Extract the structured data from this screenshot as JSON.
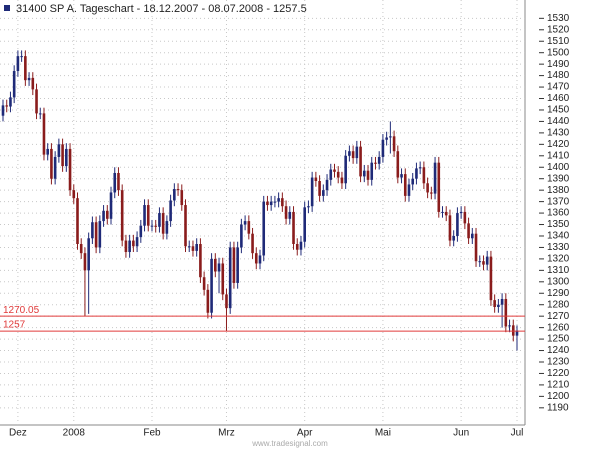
{
  "chart_data": {
    "type": "candlestick",
    "title": "31400  SP A. Tageschart - 18.12.2007 - 08.07.2008 - 1257.5",
    "watermark": "www.tradesignal.com",
    "categories": [
      null,
      null,
      null,
      null,
      "Dez",
      null,
      null,
      null,
      null,
      null,
      null,
      null,
      null,
      null,
      null,
      null,
      null,
      null,
      null,
      "2008",
      null,
      null,
      null,
      null,
      null,
      null,
      null,
      null,
      null,
      null,
      null,
      null,
      null,
      null,
      null,
      null,
      null,
      null,
      null,
      null,
      "Feb",
      null,
      null,
      null,
      null,
      null,
      null,
      null,
      null,
      null,
      null,
      null,
      null,
      null,
      null,
      null,
      null,
      null,
      null,
      null,
      "Mrz",
      null,
      null,
      null,
      null,
      null,
      null,
      null,
      null,
      null,
      null,
      null,
      null,
      null,
      null,
      null,
      null,
      null,
      null,
      null,
      null,
      "Apr",
      null,
      null,
      null,
      null,
      null,
      null,
      null,
      null,
      null,
      null,
      null,
      null,
      null,
      null,
      null,
      null,
      null,
      null,
      null,
      null,
      "Mai",
      null,
      null,
      null,
      null,
      null,
      null,
      null,
      null,
      null,
      null,
      null,
      null,
      null,
      null,
      null,
      null,
      null,
      null,
      null,
      null,
      "Jun",
      null,
      null,
      null,
      null,
      null,
      null,
      null,
      null,
      null,
      null,
      null,
      null,
      null,
      null,
      "Jul"
    ],
    "open": [
      1445,
      1454,
      1453,
      1461,
      1484,
      1497,
      1497,
      1476,
      1478,
      1468,
      1447,
      1447,
      1411,
      1416,
      1390,
      1409,
      1420,
      1401,
      1416,
      1380,
      1373,
      1333,
      1325,
      1310,
      1338,
      1352,
      1330,
      1353,
      1362,
      1355,
      1378,
      1395,
      1380,
      1336,
      1326,
      1336,
      1331,
      1339,
      1349,
      1367,
      1349,
      1349,
      1348,
      1360,
      1342,
      1353,
      1371,
      1381,
      1380,
      1367,
      1331,
      1331,
      1327,
      1333,
      1304,
      1293,
      1273,
      1320,
      1309,
      1316,
      1289,
      1277,
      1330,
      1299,
      1330,
      1350,
      1353,
      1342,
      1325,
      1316,
      1323,
      1370,
      1367,
      1370,
      1370,
      1373,
      1366,
      1355,
      1361,
      1333,
      1328,
      1335,
      1365,
      1366,
      1391,
      1388,
      1375,
      1380,
      1389,
      1398,
      1396,
      1391,
      1386,
      1410,
      1414,
      1408,
      1418,
      1392,
      1397,
      1389,
      1404,
      1403,
      1409,
      1424,
      1426,
      1427,
      1414,
      1391,
      1394,
      1375,
      1385,
      1390,
      1399,
      1400,
      1386,
      1378,
      1377,
      1404,
      1361,
      1361,
      1358,
      1336,
      1340,
      1360,
      1361,
      1351,
      1338,
      1342,
      1318,
      1318,
      1315,
      1322,
      1284,
      1278,
      1280,
      1285,
      1261,
      1262,
      1253
    ],
    "high": [
      1459,
      1459,
      1466,
      1489,
      1502,
      1502,
      1502,
      1483,
      1483,
      1473,
      1452,
      1452,
      1421,
      1421,
      1414,
      1425,
      1425,
      1421,
      1421,
      1385,
      1378,
      1338,
      1330,
      1343,
      1357,
      1357,
      1358,
      1367,
      1367,
      1383,
      1400,
      1400,
      1385,
      1341,
      1341,
      1341,
      1344,
      1354,
      1372,
      1372,
      1354,
      1354,
      1365,
      1365,
      1358,
      1376,
      1386,
      1386,
      1385,
      1372,
      1336,
      1336,
      1338,
      1338,
      1309,
      1298,
      1325,
      1325,
      1321,
      1321,
      1294,
      1335,
      1335,
      1335,
      1355,
      1358,
      1358,
      1347,
      1330,
      1328,
      1375,
      1375,
      1375,
      1375,
      1378,
      1378,
      1371,
      1366,
      1366,
      1338,
      1340,
      1370,
      1371,
      1396,
      1396,
      1393,
      1385,
      1394,
      1403,
      1403,
      1401,
      1396,
      1415,
      1419,
      1419,
      1423,
      1423,
      1402,
      1402,
      1409,
      1409,
      1414,
      1429,
      1431,
      1440,
      1432,
      1419,
      1399,
      1399,
      1390,
      1395,
      1404,
      1405,
      1405,
      1391,
      1383,
      1409,
      1409,
      1366,
      1366,
      1363,
      1345,
      1365,
      1366,
      1366,
      1356,
      1347,
      1347,
      1323,
      1323,
      1327,
      1327,
      1289,
      1285,
      1290,
      1290,
      1267,
      1267,
      1262
    ],
    "low": [
      1440,
      1448,
      1448,
      1456,
      1479,
      1492,
      1471,
      1471,
      1463,
      1442,
      1442,
      1406,
      1406,
      1385,
      1385,
      1404,
      1396,
      1396,
      1375,
      1368,
      1328,
      1320,
      1270.05,
      1272,
      1333,
      1325,
      1325,
      1348,
      1350,
      1350,
      1373,
      1375,
      1331,
      1321,
      1321,
      1326,
      1326,
      1334,
      1344,
      1344,
      1344,
      1343,
      1343,
      1337,
      1337,
      1348,
      1366,
      1375,
      1362,
      1326,
      1326,
      1322,
      1322,
      1299,
      1288,
      1268,
      1268,
      1304,
      1290,
      1284,
      1257,
      1272,
      1294,
      1294,
      1325,
      1345,
      1337,
      1320,
      1311,
      1311,
      1318,
      1362,
      1362,
      1365,
      1365,
      1361,
      1350,
      1350,
      1328,
      1323,
      1323,
      1330,
      1360,
      1361,
      1383,
      1370,
      1370,
      1375,
      1384,
      1391,
      1386,
      1381,
      1381,
      1405,
      1403,
      1403,
      1387,
      1387,
      1384,
      1384,
      1398,
      1398,
      1404,
      1419,
      1412,
      1409,
      1386,
      1386,
      1370,
      1370,
      1380,
      1385,
      1394,
      1381,
      1373,
      1372,
      1372,
      1356,
      1356,
      1353,
      1331,
      1331,
      1335,
      1355,
      1346,
      1333,
      1333,
      1313,
      1313,
      1310,
      1310,
      1279,
      1273,
      1273,
      1260,
      1256,
      1256,
      1248,
      1240
    ],
    "close": [
      1454,
      1453,
      1461,
      1484,
      1497,
      1497,
      1476,
      1478,
      1468,
      1447,
      1447,
      1411,
      1416,
      1390,
      1409,
      1420,
      1401,
      1416,
      1380,
      1373,
      1333,
      1325,
      1310,
      1338,
      1352,
      1330,
      1353,
      1362,
      1355,
      1378,
      1395,
      1380,
      1336,
      1326,
      1336,
      1331,
      1339,
      1349,
      1367,
      1349,
      1349,
      1348,
      1360,
      1342,
      1353,
      1371,
      1381,
      1380,
      1367,
      1331,
      1331,
      1327,
      1333,
      1304,
      1293,
      1273,
      1320,
      1309,
      1316,
      1289,
      1277,
      1330,
      1299,
      1330,
      1350,
      1353,
      1342,
      1325,
      1316,
      1323,
      1370,
      1367,
      1370,
      1370,
      1373,
      1366,
      1355,
      1361,
      1333,
      1328,
      1335,
      1365,
      1366,
      1391,
      1388,
      1375,
      1380,
      1389,
      1398,
      1396,
      1391,
      1386,
      1410,
      1414,
      1408,
      1418,
      1392,
      1397,
      1389,
      1404,
      1403,
      1409,
      1424,
      1426,
      1427,
      1414,
      1391,
      1394,
      1375,
      1385,
      1390,
      1399,
      1400,
      1386,
      1378,
      1377,
      1404,
      1361,
      1361,
      1358,
      1336,
      1340,
      1360,
      1361,
      1351,
      1338,
      1342,
      1318,
      1318,
      1315,
      1322,
      1284,
      1278,
      1280,
      1285,
      1261,
      1262,
      1253,
      1257.5
    ],
    "up_color": "#1f2a78",
    "down_color": "#8a1c1c",
    "hlines": [
      1270.05,
      1257
    ],
    "hline_color": "#e03a3a",
    "ylim": [
      1175,
      1546
    ],
    "yticks": [
      1190,
      1200,
      1210,
      1220,
      1230,
      1240,
      1250,
      1260,
      1270,
      1280,
      1290,
      1300,
      1310,
      1320,
      1330,
      1340,
      1350,
      1360,
      1370,
      1380,
      1390,
      1400,
      1410,
      1420,
      1430,
      1440,
      1450,
      1460,
      1470,
      1480,
      1490,
      1500,
      1510,
      1520,
      1530
    ],
    "grid": true
  }
}
